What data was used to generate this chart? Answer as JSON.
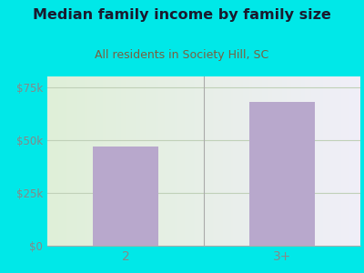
{
  "title": "Median family income by family size",
  "subtitle": "All residents in Society Hill, SC",
  "categories": [
    "2",
    "3+"
  ],
  "values": [
    47000,
    68000
  ],
  "bar_color": "#b8a8cc",
  "ylim": [
    0,
    80000
  ],
  "yticks": [
    0,
    25000,
    50000,
    75000
  ],
  "ytick_labels": [
    "$0",
    "$25k",
    "$50k",
    "$75k"
  ],
  "bg_outer": "#00e8e8",
  "title_color": "#1a1a2e",
  "subtitle_color": "#7a6040",
  "title_fontsize": 11.5,
  "subtitle_fontsize": 9,
  "tick_color": "#888888",
  "grid_color": "#c8d8c0",
  "bar_width": 0.42
}
